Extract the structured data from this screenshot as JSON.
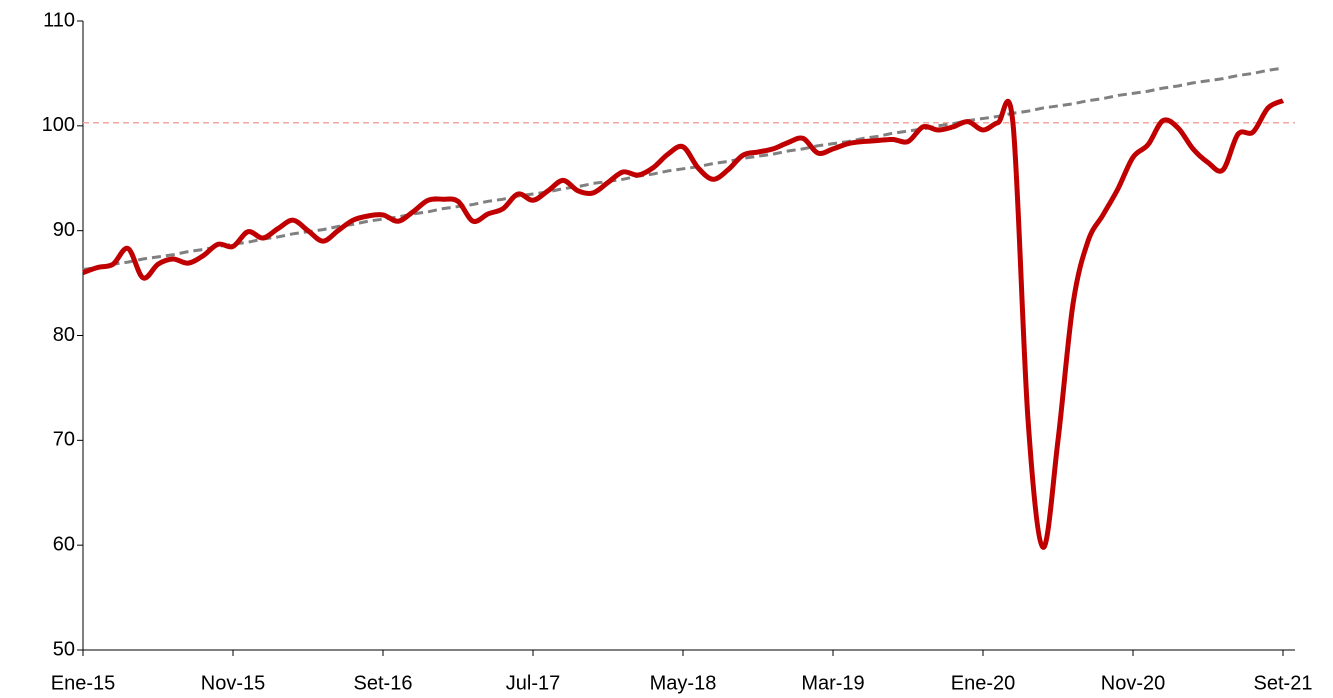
{
  "chart_data": {
    "type": "line",
    "categories": [
      "Ene-15",
      null,
      null,
      null,
      null,
      null,
      null,
      null,
      null,
      null,
      "Nov-15",
      null,
      null,
      null,
      null,
      null,
      null,
      null,
      null,
      null,
      "Set-16",
      null,
      null,
      null,
      null,
      null,
      null,
      null,
      null,
      null,
      "Jul-17",
      null,
      null,
      null,
      null,
      null,
      null,
      null,
      null,
      null,
      "May-18",
      null,
      null,
      null,
      null,
      null,
      null,
      null,
      null,
      null,
      "Mar-19",
      null,
      null,
      null,
      null,
      null,
      null,
      null,
      null,
      null,
      "Ene-20",
      null,
      null,
      null,
      null,
      null,
      null,
      null,
      null,
      null,
      "Nov-20",
      null,
      null,
      null,
      null,
      null,
      null,
      null,
      null,
      null,
      "Set-21"
    ],
    "series": [
      {
        "color": "#c00000",
        "smooth": true,
        "dashed": false,
        "values": [
          86.0,
          86.5,
          86.8,
          88.3,
          85.5,
          86.8,
          87.3,
          86.9,
          87.6,
          88.7,
          88.5,
          89.9,
          89.3,
          90.2,
          91.0,
          90.0,
          89.0,
          90.0,
          91.0,
          91.4,
          91.5,
          90.9,
          91.8,
          92.9,
          93.0,
          92.8,
          90.9,
          91.6,
          92.1,
          93.5,
          92.9,
          93.8,
          94.8,
          93.8,
          93.6,
          94.6,
          95.6,
          95.3,
          96.0,
          97.3,
          98.0,
          96.0,
          94.9,
          95.8,
          97.2,
          97.5,
          97.8,
          98.4,
          98.8,
          97.4,
          97.8,
          98.3,
          98.5,
          98.6,
          98.7,
          98.5,
          99.9,
          99.6,
          99.9,
          100.4,
          99.6,
          100.3,
          100.2,
          72.0,
          59.8,
          70.0,
          83.0,
          89.0,
          91.5,
          94.0,
          97.0,
          98.2,
          100.5,
          99.8,
          97.8,
          96.5,
          95.8,
          99.2,
          99.4,
          101.7,
          102.4
        ]
      },
      {
        "color": "#808080",
        "smooth": false,
        "dashed": true,
        "values": [
          86.3,
          86.5,
          86.8,
          87.0,
          87.3,
          87.5,
          87.7,
          88.0,
          88.2,
          88.5,
          88.7,
          88.9,
          89.2,
          89.4,
          89.7,
          89.9,
          90.1,
          90.4,
          90.6,
          90.9,
          91.1,
          91.3,
          91.6,
          91.8,
          92.1,
          92.3,
          92.5,
          92.8,
          93.0,
          93.3,
          93.5,
          93.7,
          94.0,
          94.2,
          94.5,
          94.7,
          94.9,
          95.2,
          95.4,
          95.7,
          95.9,
          96.1,
          96.4,
          96.6,
          96.9,
          97.1,
          97.3,
          97.6,
          97.8,
          98.1,
          98.3,
          98.5,
          98.8,
          99.0,
          99.3,
          99.5,
          99.7,
          100.0,
          100.2,
          100.5,
          100.7,
          100.9,
          101.2,
          101.4,
          101.7,
          101.9,
          102.1,
          102.4,
          102.6,
          102.9,
          103.1,
          103.3,
          103.6,
          103.8,
          104.1,
          104.3,
          104.5,
          104.8,
          105.0,
          105.3,
          105.5
        ]
      }
    ],
    "reference_line": {
      "value": 100.3,
      "color": "#f4a6a0"
    },
    "ylim": [
      50,
      110
    ],
    "yticks": [
      50,
      60,
      70,
      80,
      90,
      100,
      110
    ],
    "grid": false
  }
}
